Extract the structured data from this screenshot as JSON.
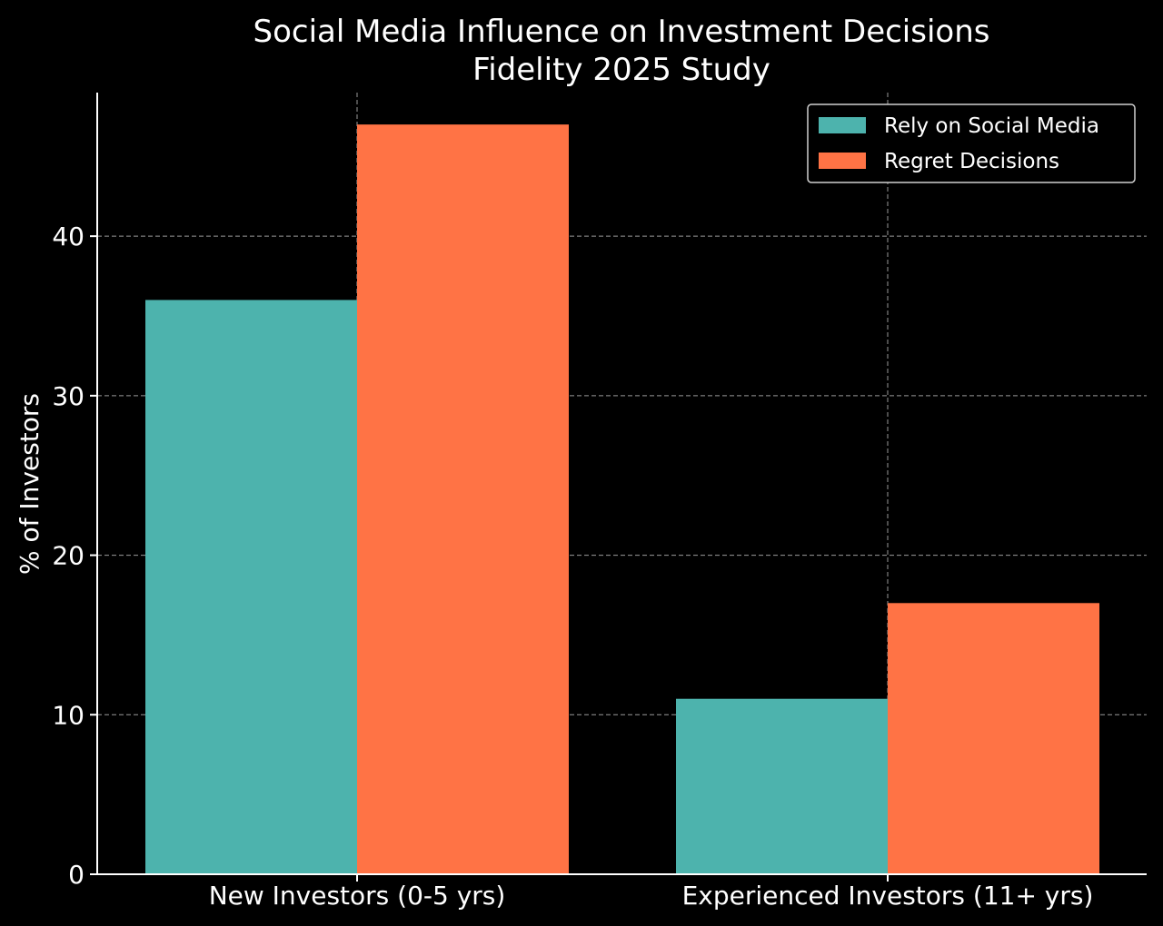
{
  "chart_data": {
    "type": "bar",
    "title": "Social Media Influence on Investment Decisions",
    "subtitle": "Fidelity 2025 Study",
    "xlabel": "",
    "ylabel": "% of Investors",
    "categories": [
      "New Investors (0-5 yrs)",
      "Experienced Investors (11+ yrs)"
    ],
    "series": [
      {
        "name": "Rely on Social Media",
        "values": [
          36,
          11
        ],
        "color": "#4db3ad"
      },
      {
        "name": "Regret Decisions",
        "values": [
          47,
          17
        ],
        "color": "#ff7345"
      }
    ],
    "ylim": [
      0,
      49
    ],
    "yticks": [
      0,
      10,
      20,
      30,
      40
    ],
    "grid": true,
    "legend_position": "top-right"
  }
}
